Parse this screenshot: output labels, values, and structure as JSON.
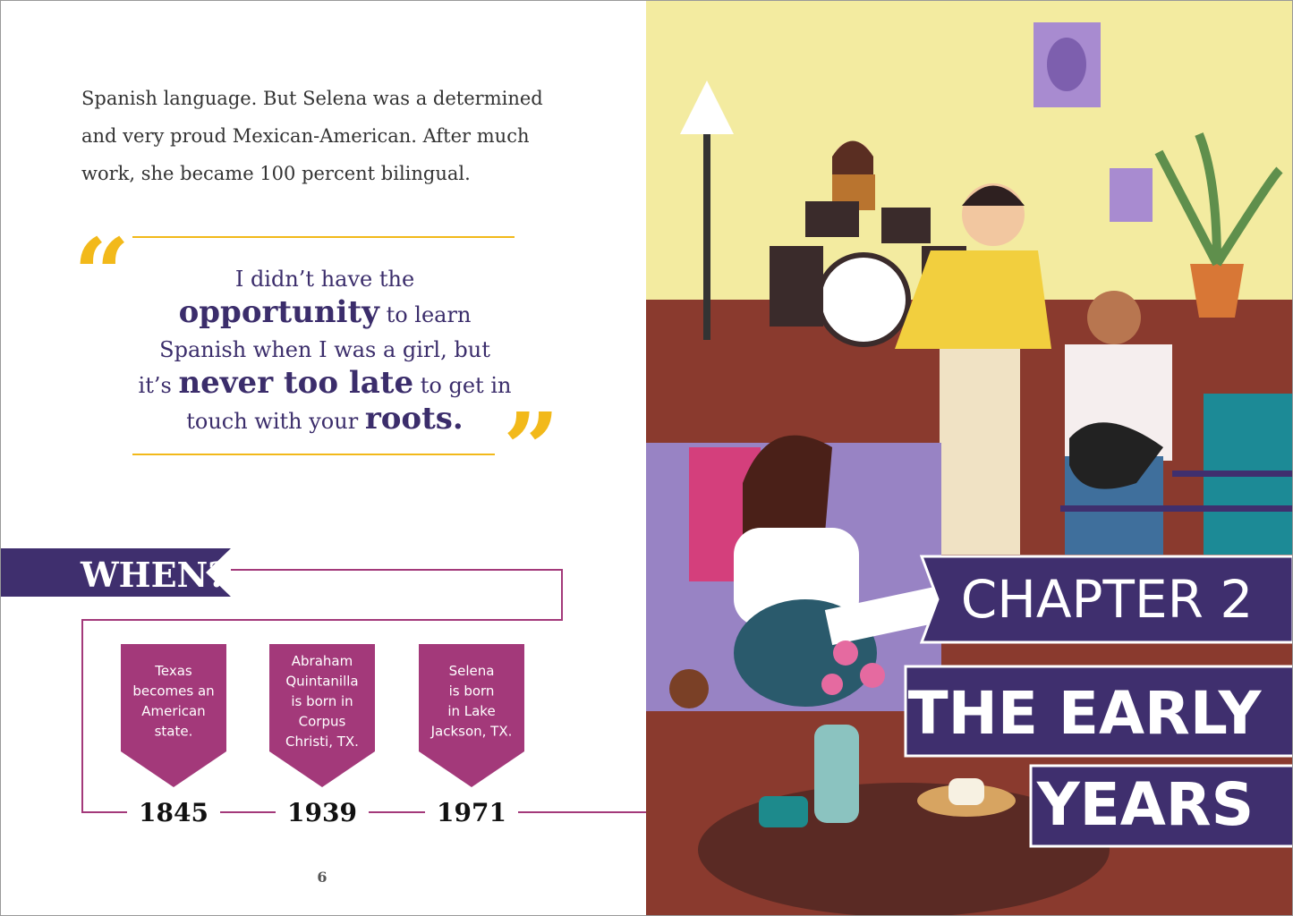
{
  "left_page": {
    "paragraph": [
      "Spanish language. But Selena was a determined",
      "and very proud Mexican-American. After much",
      "work, she became 100 percent bilingual."
    ],
    "quote": {
      "open_mark": "“",
      "close_mark": "”",
      "lines": [
        [
          "I didn’t have the"
        ],
        [
          "opportunity",
          " to learn"
        ],
        [
          "Spanish when I was a girl, but"
        ],
        [
          "it’s ",
          "never too late",
          " to get in"
        ],
        [
          "touch with your ",
          "roots."
        ]
      ]
    },
    "timeline": {
      "heading": "WHEN?",
      "events": [
        {
          "label": [
            "Texas",
            "becomes an",
            "American",
            "state."
          ],
          "year": "1845"
        },
        {
          "label": [
            "Abraham",
            "Quintanilla",
            "is born in",
            "Corpus",
            "Christi, TX."
          ],
          "year": "1939"
        },
        {
          "label": [
            "Selena",
            "is born",
            "in Lake",
            "Jackson, TX."
          ],
          "year": "1971"
        }
      ]
    },
    "page_number": "6"
  },
  "right_page": {
    "chapter": "CHAPTER 2",
    "title": [
      "THE EARLY",
      "YEARS"
    ]
  }
}
